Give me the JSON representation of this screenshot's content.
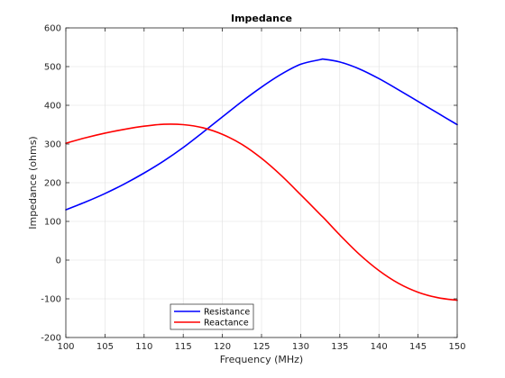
{
  "chart_data": {
    "type": "line",
    "title": "Impedance",
    "xlabel": "Frequency (MHz)",
    "ylabel": "Impedance (ohms)",
    "xlim": [
      100,
      150
    ],
    "ylim": [
      -200,
      600
    ],
    "xticks": [
      100,
      105,
      110,
      115,
      120,
      125,
      130,
      135,
      140,
      145,
      150
    ],
    "yticks": [
      -200,
      -100,
      0,
      100,
      200,
      300,
      400,
      500,
      600
    ],
    "xtick_labels": [
      "100",
      "105",
      "110",
      "115",
      "120",
      "125",
      "130",
      "135",
      "140",
      "145",
      "150"
    ],
    "ytick_labels": [
      "-200",
      "-100",
      "0",
      "100",
      "200",
      "300",
      "400",
      "500",
      "600"
    ],
    "grid": true,
    "legend_position": "bottom-left",
    "x": [
      100,
      102.5,
      105,
      107.5,
      110,
      112.5,
      115,
      117.5,
      120,
      122.5,
      125,
      127.5,
      130,
      132.5,
      133,
      135,
      137.5,
      140,
      142.5,
      145,
      147.5,
      150
    ],
    "series": [
      {
        "name": "Resistance",
        "color": "#0000ff",
        "values": [
          130,
          150,
          172,
          197,
          225,
          256,
          291,
          330,
          370,
          410,
          447,
          480,
          506,
          518,
          519,
          512,
          494,
          469,
          440,
          410,
          380,
          350
        ]
      },
      {
        "name": "Reactance",
        "color": "#ff0000",
        "values": [
          302,
          316,
          328,
          338,
          346,
          351,
          350,
          342,
          325,
          299,
          263,
          219,
          169,
          118,
          108,
          65,
          15,
          -27,
          -60,
          -83,
          -97,
          -104
        ]
      }
    ]
  }
}
